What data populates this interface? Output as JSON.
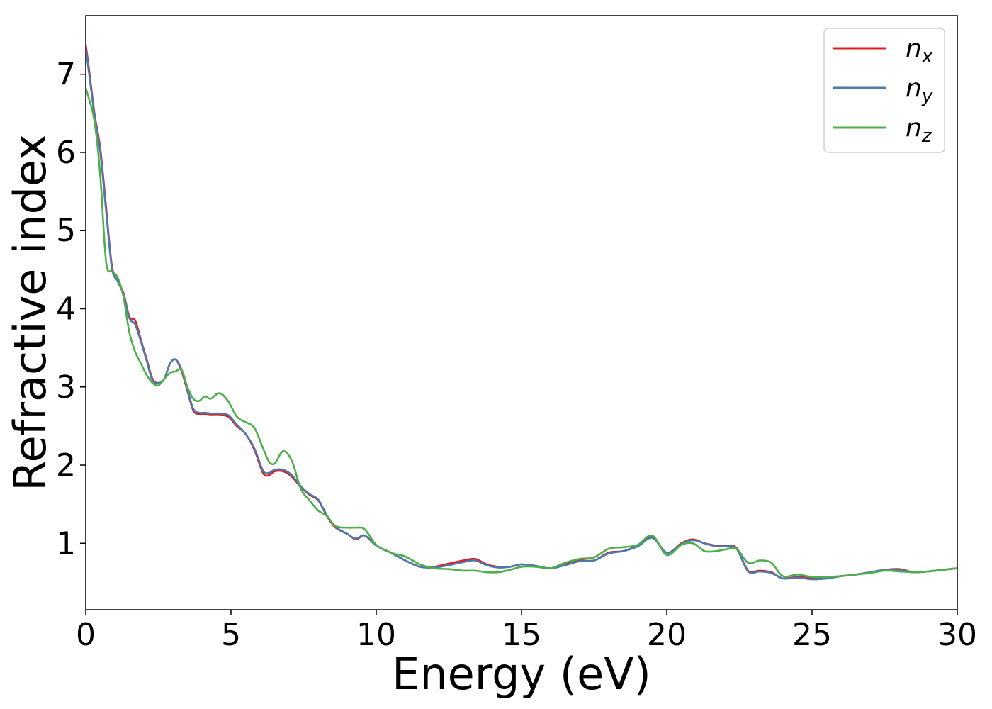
{
  "chart_data": {
    "type": "line",
    "title": "",
    "xlabel": "Energy (eV)",
    "ylabel": "Refractive index",
    "xlim": [
      0,
      30
    ],
    "ylim": [
      0.15,
      7.75
    ],
    "xticks": [
      0,
      5,
      10,
      15,
      20,
      25,
      30
    ],
    "yticks": [
      1,
      2,
      3,
      4,
      5,
      6,
      7
    ],
    "grid": false,
    "legend_position": "top-right",
    "series": [
      {
        "name": "n_x",
        "label_base": "n",
        "label_sub": "x",
        "color": "#e41a1c",
        "x": [
          0,
          0.1,
          0.3,
          0.5,
          0.7,
          0.9,
          1.1,
          1.3,
          1.5,
          1.7,
          1.9,
          2.1,
          2.3,
          2.5,
          2.7,
          2.9,
          3.1,
          3.3,
          3.5,
          3.7,
          3.9,
          4.1,
          4.3,
          4.6,
          4.9,
          5.2,
          5.5,
          5.8,
          6.1,
          6.3,
          6.5,
          6.8,
          7.1,
          7.4,
          7.7,
          8.0,
          8.3,
          8.6,
          9.0,
          9.3,
          9.6,
          10.0,
          10.5,
          11.0,
          11.5,
          12.0,
          12.5,
          13.0,
          13.4,
          13.8,
          14.2,
          14.6,
          15.0,
          15.5,
          16.0,
          16.5,
          17.0,
          17.5,
          18.0,
          18.5,
          19.0,
          19.5,
          20.0,
          20.5,
          20.9,
          21.3,
          21.7,
          22.0,
          22.4,
          22.8,
          23.2,
          23.6,
          24.0,
          24.5,
          25.0,
          25.5,
          26.0,
          26.5,
          27.0,
          27.5,
          28.0,
          28.5,
          29.0,
          29.5,
          30.0
        ],
        "y": [
          7.38,
          7.1,
          6.5,
          6.05,
          5.3,
          4.55,
          4.35,
          4.2,
          3.9,
          3.85,
          3.6,
          3.35,
          3.1,
          3.05,
          3.1,
          3.3,
          3.35,
          3.2,
          2.95,
          2.7,
          2.65,
          2.65,
          2.64,
          2.64,
          2.62,
          2.5,
          2.4,
          2.2,
          1.9,
          1.87,
          1.92,
          1.92,
          1.85,
          1.72,
          1.62,
          1.55,
          1.35,
          1.2,
          1.12,
          1.05,
          1.1,
          0.97,
          0.88,
          0.78,
          0.7,
          0.7,
          0.74,
          0.78,
          0.8,
          0.73,
          0.7,
          0.7,
          0.73,
          0.71,
          0.68,
          0.73,
          0.78,
          0.78,
          0.88,
          0.9,
          0.97,
          1.08,
          0.88,
          1.0,
          1.05,
          1.0,
          0.97,
          0.97,
          0.94,
          0.65,
          0.65,
          0.63,
          0.55,
          0.57,
          0.55,
          0.55,
          0.58,
          0.6,
          0.63,
          0.66,
          0.67,
          0.63,
          0.64,
          0.66,
          0.68
        ]
      },
      {
        "name": "n_y",
        "label_base": "n",
        "label_sub": "y",
        "color": "#4a7ab0",
        "x": [
          0,
          0.1,
          0.3,
          0.5,
          0.7,
          0.9,
          1.1,
          1.3,
          1.5,
          1.7,
          1.9,
          2.1,
          2.3,
          2.5,
          2.7,
          2.9,
          3.1,
          3.3,
          3.5,
          3.7,
          3.9,
          4.1,
          4.3,
          4.6,
          4.9,
          5.2,
          5.5,
          5.8,
          6.1,
          6.3,
          6.5,
          6.8,
          7.1,
          7.4,
          7.7,
          8.0,
          8.3,
          8.6,
          9.0,
          9.3,
          9.6,
          10.0,
          10.5,
          11.0,
          11.5,
          12.0,
          12.5,
          13.0,
          13.4,
          13.8,
          14.2,
          14.6,
          15.0,
          15.5,
          16.0,
          16.5,
          17.0,
          17.5,
          18.0,
          18.5,
          19.0,
          19.5,
          20.0,
          20.5,
          20.9,
          21.3,
          21.7,
          22.0,
          22.4,
          22.8,
          23.2,
          23.6,
          24.0,
          24.5,
          25.0,
          25.5,
          26.0,
          26.5,
          27.0,
          27.5,
          28.0,
          28.5,
          29.0,
          29.5,
          30.0
        ],
        "y": [
          7.33,
          7.05,
          6.48,
          6.0,
          5.25,
          4.52,
          4.35,
          4.18,
          3.88,
          3.8,
          3.58,
          3.33,
          3.08,
          3.05,
          3.1,
          3.3,
          3.35,
          3.22,
          2.97,
          2.72,
          2.67,
          2.67,
          2.66,
          2.66,
          2.64,
          2.52,
          2.4,
          2.22,
          1.93,
          1.9,
          1.94,
          1.94,
          1.87,
          1.73,
          1.63,
          1.56,
          1.36,
          1.21,
          1.12,
          1.06,
          1.1,
          0.97,
          0.88,
          0.78,
          0.7,
          0.69,
          0.72,
          0.76,
          0.78,
          0.72,
          0.69,
          0.7,
          0.73,
          0.71,
          0.68,
          0.72,
          0.77,
          0.78,
          0.87,
          0.9,
          0.96,
          1.07,
          0.88,
          0.99,
          1.04,
          1.0,
          0.96,
          0.96,
          0.93,
          0.64,
          0.64,
          0.62,
          0.55,
          0.56,
          0.54,
          0.55,
          0.58,
          0.6,
          0.63,
          0.66,
          0.66,
          0.63,
          0.64,
          0.66,
          0.68
        ]
      },
      {
        "name": "n_z",
        "label_base": "n",
        "label_sub": "z",
        "color": "#4daf4a",
        "x": [
          0,
          0.1,
          0.3,
          0.5,
          0.7,
          0.9,
          1.1,
          1.3,
          1.5,
          1.7,
          1.9,
          2.1,
          2.3,
          2.5,
          2.7,
          2.9,
          3.1,
          3.3,
          3.5,
          3.7,
          3.9,
          4.1,
          4.3,
          4.6,
          4.9,
          5.2,
          5.5,
          5.8,
          6.1,
          6.3,
          6.5,
          6.8,
          7.1,
          7.4,
          7.7,
          8.0,
          8.3,
          8.6,
          9.0,
          9.3,
          9.6,
          10.0,
          10.5,
          11.0,
          11.5,
          12.0,
          12.5,
          13.0,
          13.4,
          13.8,
          14.2,
          14.6,
          15.0,
          15.5,
          16.0,
          16.5,
          17.0,
          17.5,
          18.0,
          18.5,
          19.0,
          19.5,
          20.0,
          20.5,
          20.9,
          21.3,
          21.7,
          22.0,
          22.4,
          22.8,
          23.2,
          23.6,
          24.0,
          24.5,
          25.0,
          25.5,
          26.0,
          26.5,
          27.0,
          27.5,
          28.0,
          28.5,
          29.0,
          29.5,
          30.0
        ],
        "y": [
          6.82,
          6.7,
          6.4,
          5.7,
          4.6,
          4.48,
          4.4,
          4.15,
          3.7,
          3.45,
          3.3,
          3.15,
          3.05,
          3.02,
          3.1,
          3.18,
          3.2,
          3.22,
          3.0,
          2.85,
          2.82,
          2.88,
          2.85,
          2.92,
          2.82,
          2.62,
          2.55,
          2.48,
          2.22,
          2.05,
          2.02,
          2.18,
          2.05,
          1.7,
          1.55,
          1.42,
          1.35,
          1.22,
          1.2,
          1.2,
          1.18,
          0.98,
          0.88,
          0.83,
          0.73,
          0.68,
          0.67,
          0.65,
          0.65,
          0.63,
          0.63,
          0.66,
          0.7,
          0.7,
          0.68,
          0.75,
          0.8,
          0.82,
          0.93,
          0.95,
          0.98,
          1.1,
          0.85,
          0.98,
          1.0,
          0.9,
          0.9,
          0.92,
          0.93,
          0.75,
          0.78,
          0.75,
          0.58,
          0.6,
          0.57,
          0.57,
          0.58,
          0.6,
          0.62,
          0.65,
          0.64,
          0.63,
          0.64,
          0.66,
          0.68
        ]
      }
    ]
  }
}
